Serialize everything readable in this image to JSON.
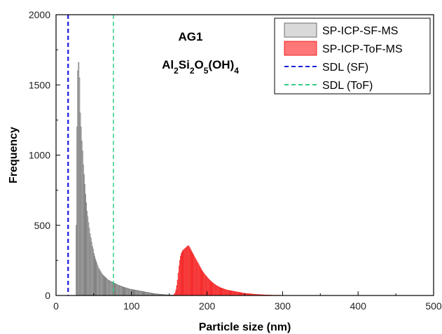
{
  "chart_data": {
    "type": "bar",
    "xlabel": "Particle size (nm)",
    "ylabel": "Frequency",
    "xlim": [
      0,
      500
    ],
    "ylim": [
      0,
      2000
    ],
    "xticks": [
      0,
      100,
      200,
      300,
      400,
      500
    ],
    "xticks_minor": [
      50,
      150,
      250,
      350,
      450
    ],
    "yticks": [
      0,
      500,
      1000,
      1500,
      2000
    ],
    "yticks_minor": [
      250,
      750,
      1250,
      1750
    ],
    "grid": false,
    "legend_position": "top-right",
    "annotations": {
      "sample": "AG1",
      "formula": {
        "parts": [
          {
            "t": "Al",
            "sub": false
          },
          {
            "t": "2",
            "sub": true
          },
          {
            "t": "Si",
            "sub": false
          },
          {
            "t": "2",
            "sub": true
          },
          {
            "t": "O",
            "sub": false
          },
          {
            "t": "5",
            "sub": true
          },
          {
            "t": "(OH)",
            "sub": false
          },
          {
            "t": "4",
            "sub": true
          }
        ]
      }
    },
    "lines": [
      {
        "name": "SDL (SF)",
        "x": 16,
        "color": "#1a1adb",
        "style": "dashed"
      },
      {
        "name": "SDL (ToF)",
        "x": 76,
        "color": "#33cc88",
        "style": "dashed"
      }
    ],
    "series": [
      {
        "name": "SP-ICP-SF-MS",
        "fill": "#d9d9d9",
        "stroke": "#505050",
        "x_start": 27,
        "step": 1,
        "values": [
          500,
          1200,
          1600,
          1660,
          1550,
          1300,
          1200,
          1100,
          1030,
          930,
          860,
          790,
          720,
          660,
          600,
          560,
          520,
          480,
          440,
          410,
          380,
          350,
          330,
          300,
          280,
          260,
          245,
          230,
          215,
          200,
          190,
          180,
          170,
          160,
          150,
          145,
          140,
          135,
          130,
          125,
          120,
          115,
          110,
          108,
          104,
          100,
          97,
          95,
          92,
          90,
          88,
          85,
          82,
          80,
          77,
          74,
          72,
          70,
          68,
          66,
          64,
          62,
          60,
          58,
          56,
          55,
          54,
          52,
          50,
          48,
          46,
          45,
          44,
          43,
          42,
          41,
          40,
          39,
          38,
          37,
          36,
          35,
          34,
          33,
          32,
          31,
          30,
          29,
          28,
          27,
          26,
          25,
          24,
          23,
          22,
          21,
          20,
          19,
          18,
          17,
          16,
          15,
          14,
          13,
          12,
          12,
          11,
          11,
          10,
          10,
          9,
          9,
          8,
          8,
          7,
          7,
          6,
          6,
          5,
          5,
          5,
          4,
          4,
          4,
          3,
          3,
          3,
          3,
          2,
          2,
          2,
          2
        ]
      },
      {
        "name": "SP-ICP-ToF-MS",
        "fill": "#ff7777",
        "stroke": "#ee0000",
        "x_start": 155,
        "step": 1,
        "values": [
          3,
          5,
          10,
          20,
          40,
          70,
          110,
          160,
          210,
          250,
          280,
          300,
          310,
          320,
          325,
          330,
          335,
          340,
          345,
          350,
          355,
          350,
          340,
          330,
          320,
          310,
          300,
          290,
          280,
          270,
          260,
          250,
          240,
          230,
          220,
          210,
          200,
          190,
          180,
          172,
          165,
          158,
          150,
          143,
          137,
          130,
          124,
          118,
          112,
          107,
          102,
          97,
          92,
          88,
          84,
          80,
          76,
          72,
          69,
          66,
          63,
          60,
          57,
          55,
          53,
          51,
          49,
          47,
          45,
          43,
          41,
          40,
          38,
          37,
          36,
          35,
          34,
          33,
          32,
          31,
          30,
          29,
          28,
          27,
          26,
          25,
          24,
          23,
          22,
          21,
          20,
          19,
          18,
          17,
          16,
          15,
          15,
          14,
          14,
          13,
          13,
          12,
          12,
          11,
          11,
          10,
          10,
          9,
          9,
          8,
          8,
          7,
          7,
          7,
          6,
          6,
          6,
          5,
          5,
          5,
          5,
          4,
          4,
          4,
          4,
          4,
          3,
          3,
          3,
          3,
          3,
          3,
          2,
          2,
          2,
          2,
          2,
          2,
          2,
          2,
          2,
          2,
          2,
          1,
          1,
          1,
          1,
          1,
          1,
          1,
          1,
          1,
          1,
          1,
          1,
          1,
          1,
          1,
          1,
          1,
          1,
          1,
          1,
          1,
          1,
          1,
          1,
          1,
          1,
          1,
          1,
          1,
          1,
          1,
          1,
          1,
          1,
          1,
          1,
          1,
          1,
          1,
          1,
          1,
          1,
          1,
          1,
          1,
          1,
          1,
          1,
          1,
          1,
          1,
          1,
          1,
          1,
          1,
          1,
          1,
          1,
          1,
          1,
          1,
          1,
          1,
          1,
          1,
          1,
          1,
          1,
          1,
          1,
          1,
          1,
          1,
          1,
          1,
          1,
          1,
          1,
          1,
          1,
          1,
          1,
          1,
          1,
          1,
          1,
          1,
          1,
          1,
          1,
          1,
          1,
          1,
          1,
          1,
          1,
          1,
          1,
          1,
          1,
          1,
          1,
          1,
          1,
          1,
          1,
          1,
          1,
          1,
          1,
          1,
          1,
          1,
          1,
          1,
          1,
          1,
          1,
          1,
          1,
          1,
          1,
          1,
          1,
          1,
          1,
          1,
          1,
          1,
          1,
          1,
          1,
          1,
          1,
          1,
          1,
          1,
          1,
          1,
          1,
          1,
          1,
          1,
          1,
          1,
          1,
          1,
          1,
          1,
          1,
          1,
          1,
          1,
          1,
          1,
          1,
          1,
          1,
          1,
          1,
          1,
          1,
          1,
          1,
          1,
          1,
          1,
          1,
          1,
          1
        ]
      }
    ]
  }
}
